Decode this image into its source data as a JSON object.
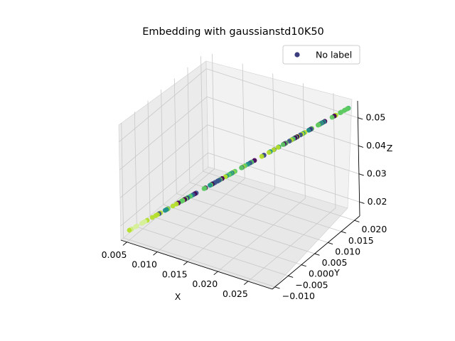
{
  "chart_data": {
    "type": "scatter",
    "projection": "3d",
    "title": "Embedding with gaussianstd10K50",
    "xlabel": "X",
    "ylabel": "Y",
    "zlabel": "Z",
    "xlim": [
      0.004,
      0.029
    ],
    "ylim": [
      -0.011,
      0.022
    ],
    "zlim": [
      0.015,
      0.056
    ],
    "xticks": [
      "0.005",
      "0.010",
      "0.015",
      "0.020",
      "0.025"
    ],
    "yticks": [
      "−0.010",
      "−0.005",
      "0.000",
      "0.005",
      "0.010",
      "0.015",
      "0.020"
    ],
    "zticks": [
      "0.02",
      "0.03",
      "0.04",
      "0.05"
    ],
    "grid": true,
    "legend_position": "top-right",
    "colormap": [
      "#440154",
      "#3b528b",
      "#21918c",
      "#5ec962",
      "#b5de2b",
      "#d6ef9a"
    ],
    "series": [
      {
        "name": "No label",
        "color": "#3b3c7e",
        "start": [
          0.0046,
          -0.0105,
          0.0178
        ],
        "end": [
          0.0285,
          0.0212,
          0.0545
        ],
        "n_points": 140
      }
    ]
  }
}
